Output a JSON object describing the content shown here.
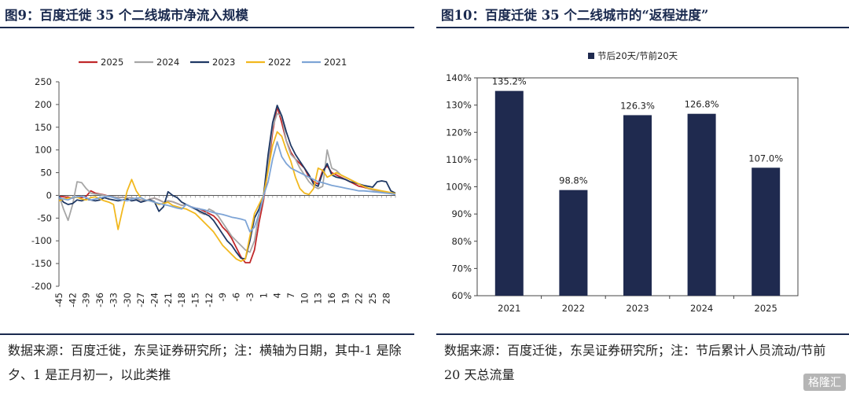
{
  "left": {
    "title": "图9：百度迁徙 35 个二线城市净流入规模",
    "note": "数据来源：百度迁徙，东吴证券研究所；注：横轴为日期，其中-1 是除夕、1 是正月初一，以此类推"
  },
  "right": {
    "title": "图10：百度迁徙 35 个二线城市的“返程进度”",
    "note": "数据来源：百度迁徙，东吴证券研究所；注：节后累计人员流动/节前 20 天总流量"
  },
  "watermark": "格隆汇",
  "chart_data": [
    {
      "type": "line",
      "title": "",
      "ylim": [
        -200,
        250
      ],
      "yticks": [
        -200,
        -150,
        -100,
        -50,
        0,
        50,
        100,
        150,
        200,
        250
      ],
      "xticks": [
        "-45",
        "-42",
        "-39",
        "-36",
        "-33",
        "-30",
        "-27",
        "-24",
        "-21",
        "-18",
        "-15",
        "-12",
        "-9",
        "-6",
        "-3",
        "1",
        "4",
        "7",
        "10",
        "13",
        "16",
        "19",
        "22",
        "25",
        "28"
      ],
      "x": [
        -45,
        -44,
        -43,
        -42,
        -41,
        -40,
        -39,
        -38,
        -37,
        -36,
        -35,
        -34,
        -33,
        -32,
        -31,
        -30,
        -29,
        -28,
        -27,
        -26,
        -25,
        -24,
        -23,
        -22,
        -21,
        -20,
        -19,
        -18,
        -17,
        -16,
        -15,
        -14,
        -13,
        -12,
        -11,
        -10,
        -9,
        -8,
        -7,
        -6,
        -5,
        -4,
        -3,
        -2,
        -1,
        1,
        2,
        3,
        4,
        5,
        6,
        7,
        8,
        9,
        10,
        11,
        12,
        13,
        14,
        15,
        16,
        17,
        18,
        19,
        20,
        21,
        22,
        23,
        24,
        25,
        26,
        27,
        28,
        29,
        30
      ],
      "series": [
        {
          "name": "2025",
          "color": "#c0282a",
          "values": [
            -2,
            -3,
            -4,
            -6,
            -3,
            -5,
            -2,
            10,
            5,
            3,
            1,
            -2,
            -3,
            -5,
            -4,
            -6,
            -5,
            -8,
            -10,
            -12,
            -8,
            -6,
            -10,
            -15,
            -12,
            -14,
            -18,
            -22,
            -20,
            -25,
            -28,
            -30,
            -35,
            -40,
            -45,
            -55,
            -70,
            -80,
            -95,
            -115,
            -135,
            -148,
            -148,
            -120,
            -60,
            -10,
            60,
            140,
            195,
            160,
            120,
            95,
            80,
            70,
            60,
            40,
            30,
            25,
            55,
            65,
            50,
            45,
            40,
            35,
            30,
            25,
            20,
            18,
            15,
            12,
            10,
            8,
            6,
            4,
            2
          ]
        },
        {
          "name": "2024",
          "color": "#a6a6a6",
          "values": [
            0,
            -30,
            -55,
            -20,
            30,
            28,
            15,
            5,
            3,
            2,
            0,
            -2,
            -3,
            -5,
            -4,
            -6,
            -5,
            -8,
            -10,
            -12,
            -8,
            -6,
            -10,
            -15,
            -12,
            -14,
            -18,
            -22,
            -20,
            -25,
            -28,
            -38,
            -42,
            -30,
            -35,
            -45,
            -60,
            -75,
            -90,
            -100,
            -110,
            -120,
            -125,
            -100,
            -40,
            -5,
            70,
            150,
            180,
            175,
            120,
            90,
            80,
            60,
            45,
            30,
            20,
            15,
            20,
            100,
            60,
            55,
            45,
            40,
            35,
            30,
            25,
            20,
            15,
            12,
            10,
            8,
            6,
            4,
            2
          ]
        },
        {
          "name": "2023",
          "color": "#1f3864",
          "values": [
            -2,
            -15,
            -20,
            -18,
            -10,
            -12,
            -8,
            -10,
            -12,
            -10,
            -5,
            -8,
            -10,
            -12,
            -10,
            -8,
            -12,
            -10,
            -15,
            -12,
            -10,
            -14,
            -35,
            -25,
            8,
            0,
            -5,
            -15,
            -20,
            -25,
            -30,
            -35,
            -40,
            -45,
            -55,
            -70,
            -85,
            -100,
            -110,
            -125,
            -138,
            -140,
            -100,
            -50,
            -30,
            0,
            90,
            160,
            198,
            175,
            140,
            110,
            90,
            75,
            60,
            45,
            25,
            20,
            50,
            70,
            45,
            40,
            38,
            35,
            30,
            28,
            25,
            22,
            20,
            18,
            30,
            32,
            30,
            10,
            5
          ]
        },
        {
          "name": "2022",
          "color": "#f2b81e",
          "values": [
            -12,
            -8,
            -6,
            -5,
            -4,
            -8,
            -10,
            -5,
            -3,
            -8,
            -12,
            -15,
            -20,
            -75,
            -30,
            10,
            35,
            10,
            -5,
            -10,
            -12,
            -15,
            -20,
            -18,
            -15,
            -22,
            -25,
            -28,
            -30,
            -35,
            -40,
            -50,
            -60,
            -70,
            -80,
            -95,
            -110,
            -120,
            -130,
            -140,
            -145,
            -140,
            -90,
            -40,
            -20,
            0,
            55,
            110,
            140,
            130,
            100,
            75,
            40,
            15,
            5,
            2,
            15,
            60,
            55,
            40,
            45,
            50,
            45,
            40,
            35,
            30,
            25,
            20,
            16,
            14,
            12,
            10,
            8,
            6,
            4
          ]
        },
        {
          "name": "2021",
          "color": "#7da4d6",
          "values": [
            -5,
            -8,
            -10,
            -5,
            -3,
            -2,
            -5,
            -10,
            -8,
            -5,
            -3,
            -2,
            -5,
            -8,
            -10,
            -12,
            -8,
            -6,
            -5,
            -10,
            -12,
            -15,
            -18,
            -20,
            -22,
            -25,
            -28,
            -30,
            -20,
            -25,
            -28,
            -30,
            -32,
            -35,
            -38,
            -40,
            -42,
            -45,
            -48,
            -50,
            -52,
            -55,
            -80,
            -70,
            -40,
            0,
            30,
            80,
            118,
            85,
            70,
            60,
            55,
            50,
            45,
            40,
            35,
            30,
            28,
            25,
            22,
            20,
            18,
            16,
            14,
            12,
            10,
            10,
            9,
            8,
            7,
            6,
            5,
            4,
            2
          ]
        }
      ]
    },
    {
      "type": "bar",
      "title": "",
      "legend": "节后20天/节前20天",
      "categories": [
        "2021",
        "2022",
        "2023",
        "2024",
        "2025"
      ],
      "values": [
        135.2,
        98.8,
        126.3,
        126.8,
        107.0
      ],
      "value_labels": [
        "135.2%",
        "98.8%",
        "126.3%",
        "126.8%",
        "107.0%"
      ],
      "yticks": [
        "60%",
        "70%",
        "80%",
        "90%",
        "100%",
        "110%",
        "120%",
        "130%",
        "140%"
      ],
      "ylim": [
        60,
        140
      ],
      "color": "#1f2a4f"
    }
  ]
}
